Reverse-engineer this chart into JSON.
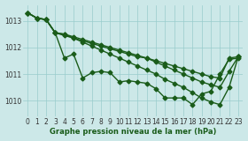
{
  "title": "Graphe pression niveau de la mer (hPa)",
  "xlim": [
    -0.5,
    23.5
  ],
  "ylim": [
    1009.4,
    1013.6
  ],
  "yticks": [
    1010,
    1011,
    1012,
    1013
  ],
  "xticks": [
    0,
    1,
    2,
    3,
    4,
    5,
    6,
    7,
    8,
    9,
    10,
    11,
    12,
    13,
    14,
    15,
    16,
    17,
    18,
    19,
    20,
    21,
    22,
    23
  ],
  "bg_color": "#cce8e8",
  "grid_color": "#99cccc",
  "line_color": "#1a5c1a",
  "lines": [
    {
      "x": [
        0,
        1,
        2,
        3,
        4,
        5,
        6,
        7,
        8,
        9,
        10,
        11,
        12,
        13,
        14,
        15,
        16,
        17,
        18,
        19,
        20,
        21,
        22,
        23
      ],
      "y": [
        1013.3,
        1013.1,
        1013.05,
        1012.55,
        1012.45,
        1012.35,
        1012.25,
        1012.15,
        1012.05,
        1011.95,
        1011.85,
        1011.75,
        1011.65,
        1011.6,
        1011.5,
        1011.4,
        1011.3,
        1011.2,
        1011.1,
        1011.0,
        1010.9,
        1010.85,
        1011.6,
        1011.65
      ]
    },
    {
      "x": [
        0,
        1,
        2,
        3,
        4,
        5,
        6,
        7,
        8,
        9,
        10,
        11,
        12,
        13,
        14,
        15,
        16,
        17,
        18,
        19,
        20,
        21,
        22,
        23
      ],
      "y": [
        1013.3,
        1013.1,
        1013.05,
        1012.55,
        1012.5,
        1012.4,
        1012.3,
        1012.2,
        1012.1,
        1012.0,
        1011.9,
        1011.8,
        1011.7,
        1011.6,
        1011.45,
        1011.3,
        1011.15,
        1011.0,
        1010.85,
        1010.7,
        1010.6,
        1010.5,
        1011.1,
        1011.65
      ]
    },
    {
      "x": [
        0,
        1,
        2,
        3,
        4,
        5,
        6,
        7,
        8,
        9,
        10,
        11,
        12,
        13,
        14,
        15,
        16,
        17,
        18,
        19,
        20,
        21,
        22,
        23
      ],
      "y": [
        1013.3,
        1013.1,
        1013.05,
        1012.55,
        1011.6,
        1011.75,
        1010.85,
        1011.05,
        1011.1,
        1011.05,
        1010.7,
        1010.75,
        1010.7,
        1010.65,
        1010.45,
        1010.1,
        1010.1,
        1010.1,
        1009.85,
        1010.25,
        1010.35,
        1011.0,
        1011.55,
        1011.6
      ]
    },
    {
      "x": [
        0,
        1,
        2,
        3,
        4,
        5,
        6,
        7,
        8,
        9,
        10,
        11,
        12,
        13,
        14,
        15,
        16,
        17,
        18,
        19,
        20,
        21,
        22,
        23
      ],
      "y": [
        1013.3,
        1013.1,
        1013.05,
        1012.55,
        1012.5,
        1012.35,
        1012.2,
        1012.05,
        1011.9,
        1011.75,
        1011.6,
        1011.45,
        1011.3,
        1011.15,
        1011.0,
        1010.8,
        1010.65,
        1010.5,
        1010.3,
        1010.1,
        1009.95,
        1009.85,
        1010.5,
        1011.65
      ]
    }
  ],
  "markersize": 2.5,
  "linewidth": 1.0,
  "tick_labelsize": 5.5,
  "xlabel_fontsize": 6.0
}
